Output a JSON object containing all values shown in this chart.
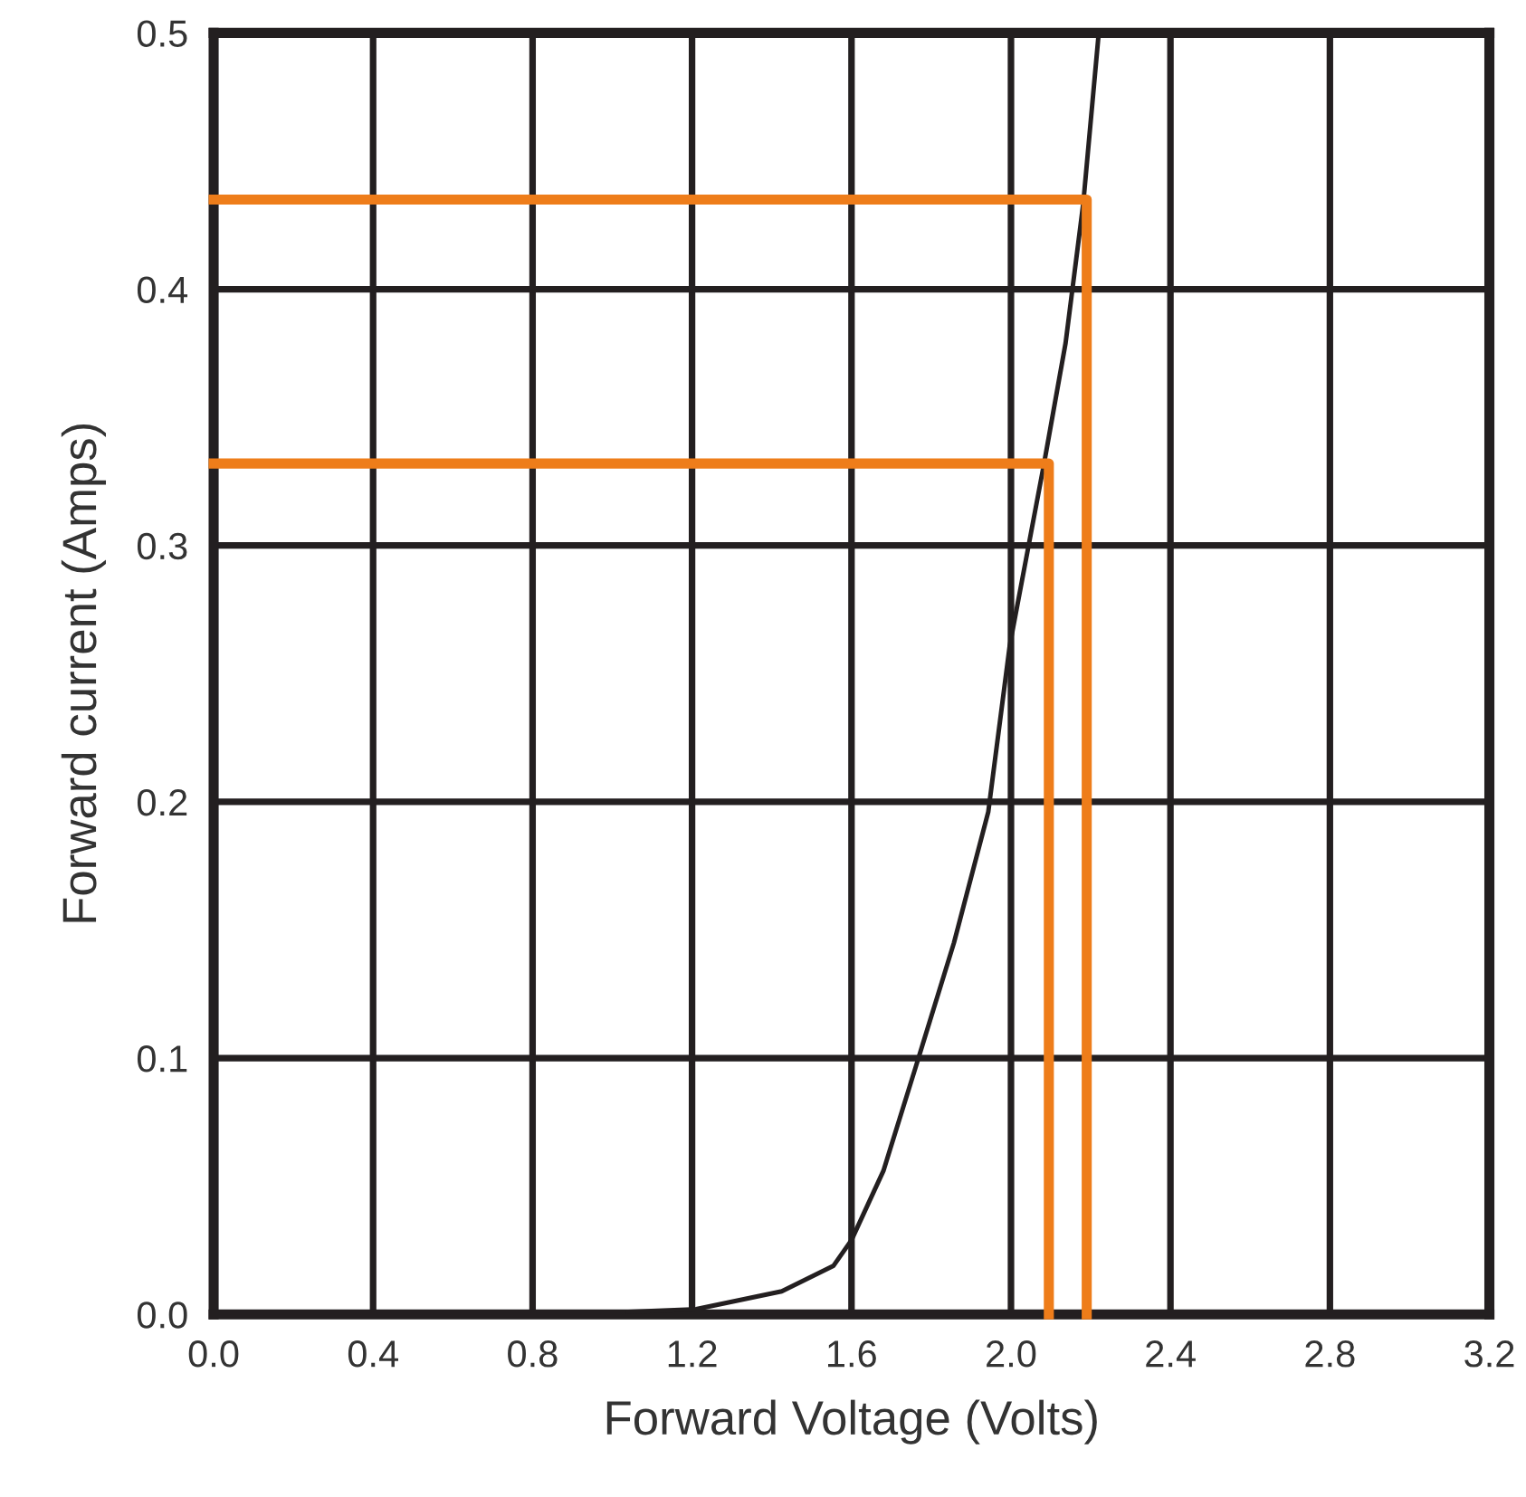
{
  "chart_data": {
    "type": "line",
    "xlabel": "Forward Voltage (Volts)",
    "ylabel": "Forward current (Amps)",
    "xlim": [
      0,
      3.2
    ],
    "ylim": [
      0,
      0.5
    ],
    "xticks": [
      {
        "value": 0,
        "label": "0.0"
      },
      0.4,
      0.8,
      1.2,
      1.6,
      {
        "value": 2,
        "label": "2.0"
      },
      2.4,
      2.8,
      3.2
    ],
    "yticks": [
      {
        "value": 0,
        "label": "0.0"
      },
      0.1,
      0.2,
      0.3,
      0.4,
      0.5
    ],
    "grid": true,
    "legend": false,
    "marker": "none",
    "line_style": "solid",
    "series": [
      {
        "color": "#231f20",
        "x": [
          1.04,
          1.21,
          1.425,
          1.555,
          1.6,
          1.68,
          1.76,
          1.857,
          1.943,
          1.997,
          2.083,
          2.137,
          2.181,
          2.219
        ],
        "values": [
          0.001,
          0.002,
          0.009,
          0.019,
          0.029,
          0.056,
          0.096,
          0.145,
          0.196,
          0.261,
          0.332,
          0.379,
          0.433,
          0.498
        ]
      },
      {
        "color": "#ee7d1a",
        "x": [
          0,
          2.19,
          2.19
        ],
        "values": [
          0.435,
          0.435,
          0
        ]
      },
      {
        "color": "#ee7d1a",
        "x": [
          0,
          2.095,
          2.095
        ],
        "values": [
          0.332,
          0.332,
          0
        ]
      }
    ]
  }
}
